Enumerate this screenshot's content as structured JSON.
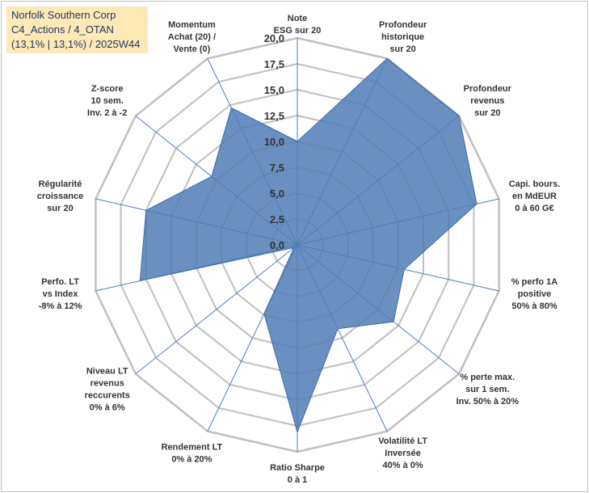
{
  "header": {
    "line1": "Norfolk Southern Corp",
    "line2": "C4_Actions / 4_OTAN",
    "line3": "(13,1% | 13,1%) / 2025W44"
  },
  "chart_data": {
    "type": "radar",
    "title": "Norfolk Southern Corp",
    "rmin": 0,
    "rmax": 20,
    "tick_values": [
      0,
      2.5,
      5,
      7.5,
      10,
      12.5,
      15,
      17.5,
      20
    ],
    "tick_labels": [
      "0,0",
      "2,5",
      "5,0",
      "7,5",
      "10,0",
      "12,5",
      "15,0",
      "17,5",
      "20,0"
    ],
    "categories": [
      [
        "Note",
        "ESG sur 20"
      ],
      [
        "Profondeur",
        "historique",
        "sur 20"
      ],
      [
        "Profondeur",
        "revenus",
        "sur 20"
      ],
      [
        "Capi. bours.",
        "en MdEUR",
        "0 à 60 G€"
      ],
      [
        "% perfo 1A",
        "positive",
        "50% à 80%"
      ],
      [
        "% perte max.",
        "sur 1 sem.",
        "Inv. 50% à 20%"
      ],
      [
        "Volatilité LT",
        "Inversée",
        "40% à 0%"
      ],
      [
        "Ratio Sharpe",
        "0 à 1"
      ],
      [
        "Rendement LT",
        "0% à 20%"
      ],
      [
        "Niveau LT",
        "revenus",
        "reccurents",
        "0% à 6%"
      ],
      [
        "Perfo. LT",
        "vs Index",
        "-8% à 12%"
      ],
      [
        "Régularité",
        "croissance",
        "sur 20"
      ],
      [
        "Z-score",
        "10 sem.",
        "Inv. 2 à -2"
      ],
      [
        "Momentum",
        "Achat (20) /",
        "Vente (0)"
      ]
    ],
    "series": [
      {
        "name": "Norfolk Southern Corp",
        "values": [
          10,
          20,
          20,
          17.8,
          10.6,
          11.9,
          9,
          18.1,
          7.4,
          0.4,
          15.6,
          15,
          10.6,
          14.7
        ],
        "fill": "#4f7cb5",
        "stroke": "#3b6aa8"
      }
    ],
    "grid_color": "#bfbfbf",
    "axis_color": "#4a7cc4"
  }
}
